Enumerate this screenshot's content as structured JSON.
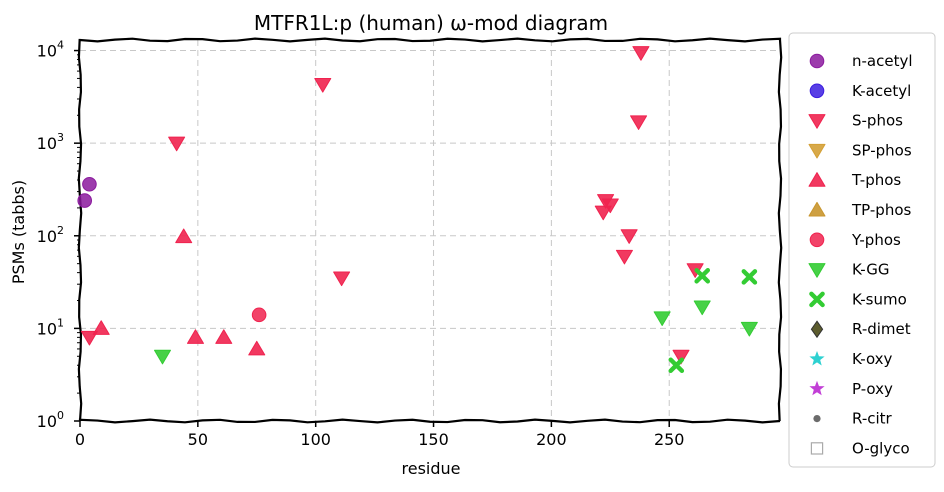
{
  "chart_data": {
    "type": "scatter",
    "title": "MTFR1L:p (human) ω-mod diagram",
    "xlabel": "residue",
    "ylabel": "PSMs (tabbs)",
    "xlim": [
      0,
      297
    ],
    "ylim": [
      1,
      13000
    ],
    "yscale": "log",
    "x_ticks": [
      0,
      50,
      100,
      150,
      200,
      250
    ],
    "x_tick_labels": [
      "0",
      "50",
      "100",
      "150",
      "200",
      "250"
    ],
    "y_ticks": [
      1,
      10,
      100,
      1000,
      10000
    ],
    "y_tick_labels": [
      {
        "base": "10",
        "exp": "0"
      },
      {
        "base": "10",
        "exp": "1"
      },
      {
        "base": "10",
        "exp": "2"
      },
      {
        "base": "10",
        "exp": "3"
      },
      {
        "base": "10",
        "exp": "4"
      }
    ],
    "grid": true,
    "legend_position": "outside-right",
    "series": [
      {
        "name": "n-acetyl",
        "marker": "circle",
        "color": "#8b1a9e",
        "points": [
          [
            2,
            240
          ],
          [
            4,
            360
          ]
        ]
      },
      {
        "name": "K-acetyl",
        "marker": "circle",
        "color": "#3b1de0",
        "points": []
      },
      {
        "name": "S-phos",
        "marker": "triangle-down",
        "color": "#f0234f",
        "points": [
          [
            4,
            8
          ],
          [
            41,
            1000
          ],
          [
            103,
            4300
          ],
          [
            111,
            35
          ],
          [
            222,
            180
          ],
          [
            223,
            240
          ],
          [
            225,
            215
          ],
          [
            231,
            60
          ],
          [
            233,
            100
          ],
          [
            237,
            1700
          ],
          [
            238,
            9500
          ],
          [
            255,
            5
          ],
          [
            261,
            43
          ]
        ]
      },
      {
        "name": "SP-phos",
        "marker": "triangle-down",
        "color": "#d4a035",
        "points": []
      },
      {
        "name": "T-phos",
        "marker": "triangle-up",
        "color": "#f0234f",
        "points": [
          [
            9,
            10
          ],
          [
            44,
            98
          ],
          [
            49,
            8
          ],
          [
            61,
            8
          ],
          [
            75,
            6
          ]
        ]
      },
      {
        "name": "TP-phos",
        "marker": "triangle-up",
        "color": "#c9962e",
        "points": []
      },
      {
        "name": "Y-phos",
        "marker": "circle",
        "color": "#f0234f",
        "points": [
          [
            76,
            14
          ]
        ]
      },
      {
        "name": "K-GG",
        "marker": "triangle-down",
        "color": "#33cc33",
        "points": [
          [
            35,
            5
          ],
          [
            247,
            13
          ],
          [
            264,
            17
          ],
          [
            284,
            10
          ]
        ]
      },
      {
        "name": "K-sumo",
        "marker": "x",
        "color": "#33cc33",
        "points": [
          [
            253,
            4
          ],
          [
            264,
            37
          ],
          [
            284,
            36
          ]
        ]
      },
      {
        "name": "R-dimet",
        "marker": "diamond",
        "color": "#5c5c2e",
        "points": []
      },
      {
        "name": "K-oxy",
        "marker": "star",
        "color": "#2ed1d1",
        "points": []
      },
      {
        "name": "P-oxy",
        "marker": "star",
        "color": "#c23fd6",
        "points": []
      },
      {
        "name": "R-citr",
        "marker": "dot",
        "color": "#6b6b6b",
        "points": []
      },
      {
        "name": "O-glyco",
        "marker": "square-open",
        "color": "#aaaaaa",
        "points": []
      }
    ]
  }
}
